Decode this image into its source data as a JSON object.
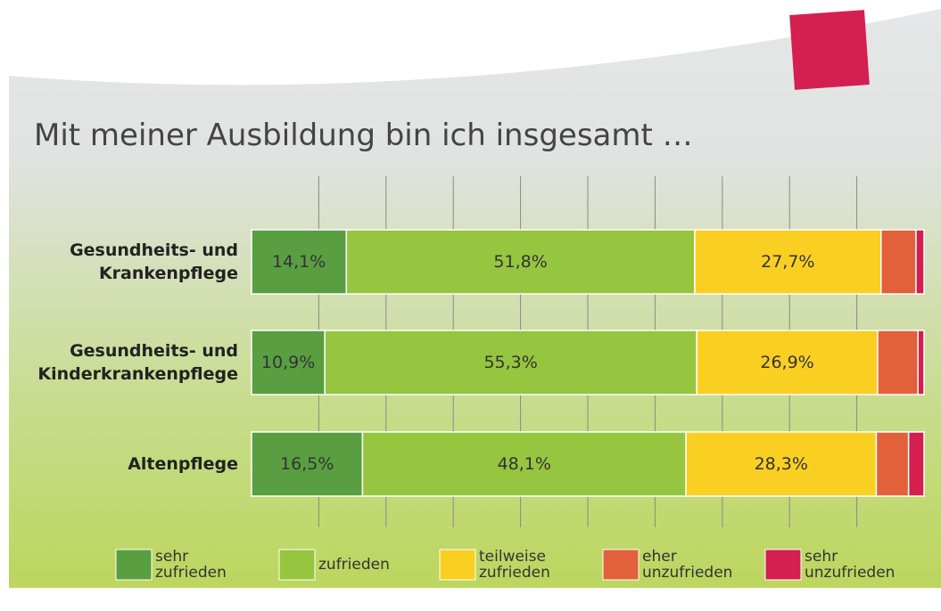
{
  "chart_data": {
    "type": "stacked_bar_horizontal",
    "title": "Mit meiner Ausbildung bin ich insgesamt …",
    "categories": [
      "Gesundheits- und Krankenpflege",
      "Gesundheits- und Kinderkrankenpflege",
      "Altenpflege"
    ],
    "xlim": [
      0,
      100
    ],
    "xticks": [
      10,
      20,
      30,
      40,
      50,
      60,
      70,
      80,
      90
    ],
    "grid": true,
    "legend": "bottom",
    "series": [
      {
        "name": "sehr zufrieden",
        "color": "#5a9e42",
        "values": [
          14.1,
          10.9,
          16.5
        ],
        "value_labels": [
          "14,1%",
          "10,9%",
          "16,5%"
        ]
      },
      {
        "name": "zufrieden",
        "color": "#96c540",
        "values": [
          51.8,
          55.3,
          48.1
        ],
        "value_labels": [
          "51,8%",
          "55,3%",
          "48,1%"
        ]
      },
      {
        "name": "teilweise zufrieden",
        "color": "#f9cf22",
        "values": [
          27.7,
          26.9,
          28.3
        ],
        "value_labels": [
          "27,7%",
          "26,9%",
          "28,3%"
        ]
      },
      {
        "name": "eher unzufrieden",
        "color": "#e2603a",
        "values": [
          5.2,
          6.0,
          4.8
        ],
        "value_labels": [
          null,
          null,
          null
        ]
      },
      {
        "name": "sehr unzufrieden",
        "color": "#d41f50",
        "values": [
          1.2,
          0.9,
          2.3
        ],
        "value_labels": [
          null,
          null,
          null
        ]
      }
    ]
  }
}
